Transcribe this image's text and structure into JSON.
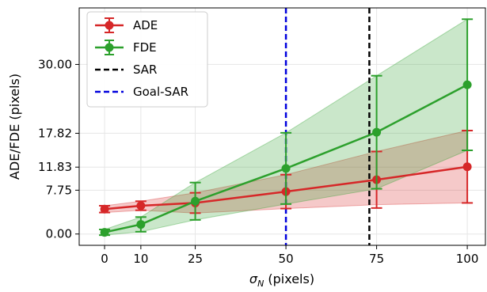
{
  "chart_data": {
    "type": "line",
    "xlabel": "σ_N (pixels)",
    "xlabel_main": "σ",
    "xlabel_sub": "N",
    "xlabel_rest": " (pixels)",
    "ylabel": "ADE/FDE (pixels)",
    "xlim": [
      -7,
      105
    ],
    "ylim": [
      -2,
      40
    ],
    "x_ticks": [
      0,
      10,
      25,
      50,
      75,
      100
    ],
    "x_tick_labels": [
      "0",
      "10",
      "25",
      "50",
      "75",
      "100"
    ],
    "y_ticks": [
      0,
      7.75,
      11.83,
      17.82,
      30
    ],
    "y_tick_labels": [
      "0.00",
      "7.75",
      "11.83",
      "17.82",
      "30.00"
    ],
    "grid": true,
    "legend_position": "top-left",
    "series": [
      {
        "name": "ADE",
        "color": "#d62728",
        "x": [
          0,
          10,
          25,
          50,
          75,
          100
        ],
        "y": [
          4.4,
          5.0,
          5.5,
          7.5,
          9.6,
          11.9
        ],
        "err": [
          0.6,
          0.8,
          1.8,
          3.0,
          5.0,
          6.4
        ],
        "band_lower": [
          3.8,
          4.2,
          3.7,
          4.5,
          5.2,
          5.5
        ],
        "band_upper": [
          5.0,
          5.8,
          7.3,
          10.5,
          14.6,
          18.3
        ]
      },
      {
        "name": "FDE",
        "color": "#2ca02c",
        "x": [
          0,
          10,
          25,
          50,
          75,
          100
        ],
        "y": [
          0.3,
          1.7,
          5.8,
          11.6,
          18.0,
          26.4
        ],
        "err": [
          0.5,
          1.3,
          3.3,
          6.3,
          10.0,
          11.6
        ],
        "band_lower": [
          -0.2,
          0.4,
          2.5,
          5.3,
          8.0,
          14.8
        ],
        "band_upper": [
          0.8,
          3.0,
          9.1,
          17.9,
          28.0,
          38.0
        ]
      }
    ],
    "vlines": [
      {
        "name": "SAR",
        "x": 73,
        "color": "#000000",
        "dash": "dashed"
      },
      {
        "name": "Goal-SAR",
        "x": 50,
        "color": "#0000dd",
        "dash": "dashed"
      }
    ],
    "legend": [
      "ADE",
      "FDE",
      "SAR",
      "Goal-SAR"
    ]
  }
}
